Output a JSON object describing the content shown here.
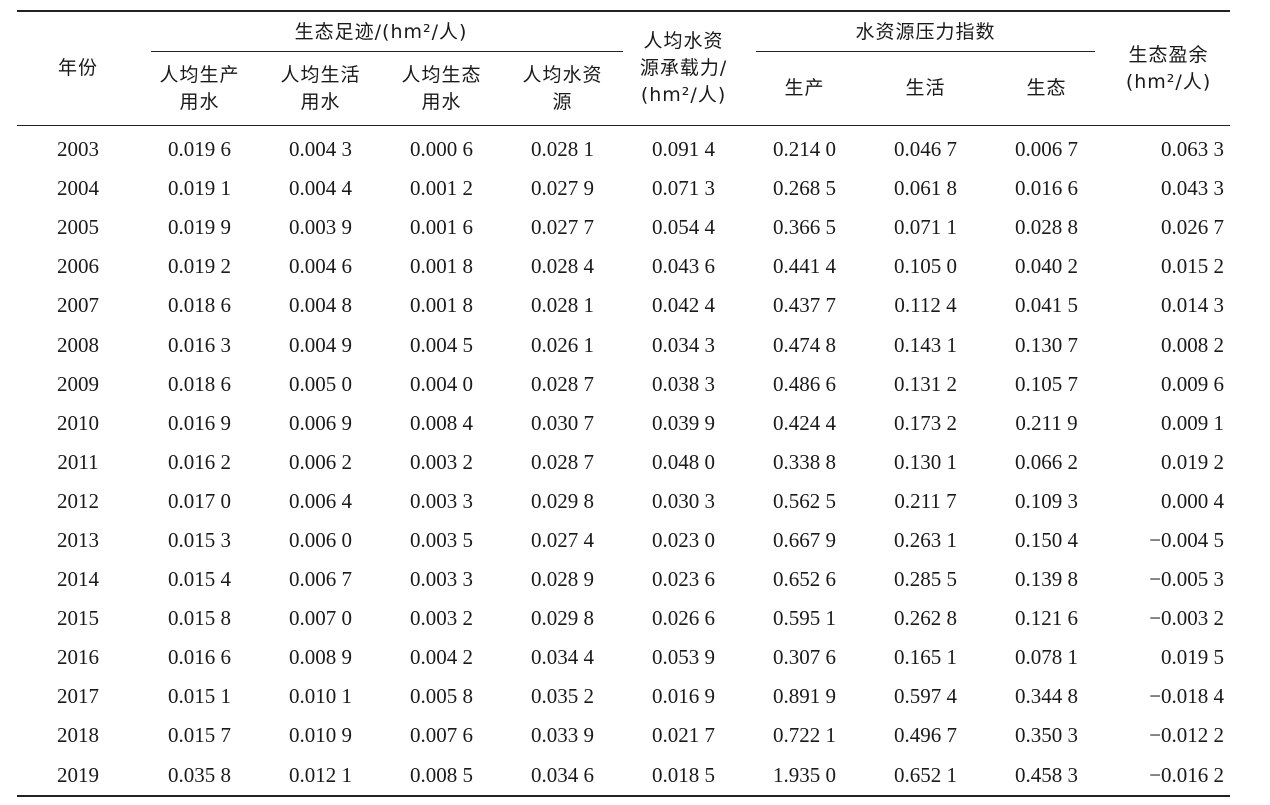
{
  "headers": {
    "year": "年份",
    "footprint_group": "生态足迹/(hm²/人)",
    "footprint_cols": [
      [
        "人均生产",
        "用水"
      ],
      [
        "人均生活",
        "用水"
      ],
      [
        "人均生态",
        "用水"
      ],
      [
        "人均水资",
        "源"
      ]
    ],
    "capacity": [
      "人均水资",
      "源承载力/",
      "(hm²/人)"
    ],
    "pressure_group": "水资源压力指数",
    "pressure_cols": [
      "生产",
      "生活",
      "生态"
    ],
    "surplus": [
      "生态盈余",
      "(hm²/人)"
    ]
  },
  "rows": [
    [
      "2003",
      "0.019 6",
      "0.004 3",
      "0.000 6",
      "0.028 1",
      "0.091 4",
      "0.214 0",
      "0.046 7",
      "0.006 7",
      "0.063 3"
    ],
    [
      "2004",
      "0.019 1",
      "0.004 4",
      "0.001 2",
      "0.027 9",
      "0.071 3",
      "0.268 5",
      "0.061 8",
      "0.016 6",
      "0.043 3"
    ],
    [
      "2005",
      "0.019 9",
      "0.003 9",
      "0.001 6",
      "0.027 7",
      "0.054 4",
      "0.366 5",
      "0.071 1",
      "0.028 8",
      "0.026 7"
    ],
    [
      "2006",
      "0.019 2",
      "0.004 6",
      "0.001 8",
      "0.028 4",
      "0.043 6",
      "0.441 4",
      "0.105 0",
      "0.040 2",
      "0.015 2"
    ],
    [
      "2007",
      "0.018 6",
      "0.004 8",
      "0.001 8",
      "0.028 1",
      "0.042 4",
      "0.437 7",
      "0.112 4",
      "0.041 5",
      "0.014 3"
    ],
    [
      "2008",
      "0.016 3",
      "0.004 9",
      "0.004 5",
      "0.026 1",
      "0.034 3",
      "0.474 8",
      "0.143 1",
      "0.130 7",
      "0.008 2"
    ],
    [
      "2009",
      "0.018 6",
      "0.005 0",
      "0.004 0",
      "0.028 7",
      "0.038 3",
      "0.486 6",
      "0.131 2",
      "0.105 7",
      "0.009 6"
    ],
    [
      "2010",
      "0.016 9",
      "0.006 9",
      "0.008 4",
      "0.030 7",
      "0.039 9",
      "0.424 4",
      "0.173 2",
      "0.211 9",
      "0.009 1"
    ],
    [
      "2011",
      "0.016 2",
      "0.006 2",
      "0.003 2",
      "0.028 7",
      "0.048 0",
      "0.338 8",
      "0.130 1",
      "0.066 2",
      "0.019 2"
    ],
    [
      "2012",
      "0.017 0",
      "0.006 4",
      "0.003 3",
      "0.029 8",
      "0.030 3",
      "0.562 5",
      "0.211 7",
      "0.109 3",
      "0.000 4"
    ],
    [
      "2013",
      "0.015 3",
      "0.006 0",
      "0.003 5",
      "0.027 4",
      "0.023 0",
      "0.667 9",
      "0.263 1",
      "0.150 4",
      "−0.004 5"
    ],
    [
      "2014",
      "0.015 4",
      "0.006 7",
      "0.003 3",
      "0.028 9",
      "0.023 6",
      "0.652 6",
      "0.285 5",
      "0.139 8",
      "−0.005 3"
    ],
    [
      "2015",
      "0.015 8",
      "0.007 0",
      "0.003 2",
      "0.029 8",
      "0.026 6",
      "0.595 1",
      "0.262 8",
      "0.121 6",
      "−0.003 2"
    ],
    [
      "2016",
      "0.016 6",
      "0.008 9",
      "0.004 2",
      "0.034 4",
      "0.053 9",
      "0.307 6",
      "0.165 1",
      "0.078 1",
      "0.019 5"
    ],
    [
      "2017",
      "0.015 1",
      "0.010 1",
      "0.005 8",
      "0.035 2",
      "0.016 9",
      "0.891 9",
      "0.597 4",
      "0.344 8",
      "−0.018 4"
    ],
    [
      "2018",
      "0.015 7",
      "0.010 9",
      "0.007 6",
      "0.033 9",
      "0.021 7",
      "0.722 1",
      "0.496 7",
      "0.350 3",
      "−0.012 2"
    ],
    [
      "2019",
      "0.035 8",
      "0.012 1",
      "0.008 5",
      "0.034 6",
      "0.018 5",
      "1.935 0",
      "0.652 1",
      "0.458 3",
      "−0.016 2"
    ]
  ]
}
